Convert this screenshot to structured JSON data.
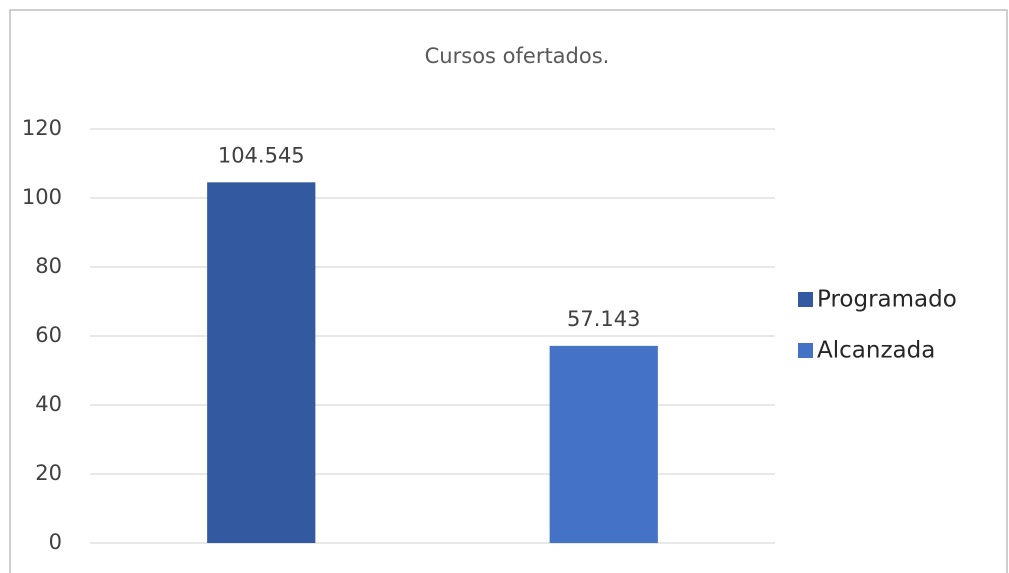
{
  "chart_data": {
    "type": "bar",
    "title": "Cursos ofertados.",
    "categories": [
      "Programado",
      "Alcanzada"
    ],
    "values": [
      104.545,
      57.143
    ],
    "colors": [
      "#335aa1",
      "#4472c4"
    ],
    "ylim": [
      0,
      120
    ],
    "yticks": [
      0,
      20,
      40,
      60,
      80,
      100,
      120
    ],
    "grid": true,
    "legend": "right"
  }
}
